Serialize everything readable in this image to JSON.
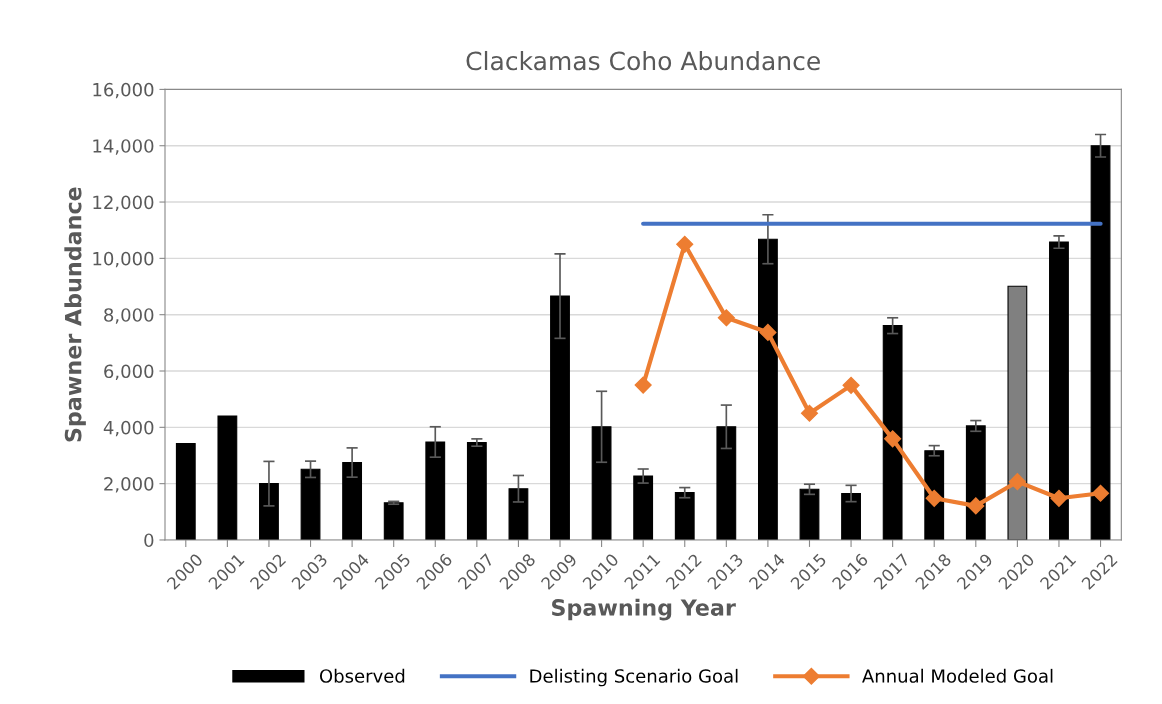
{
  "chart_data": {
    "type": "bar",
    "title": "Clackamas Coho Abundance",
    "xlabel": "Spawning Year",
    "ylabel": "Spawner Abundance",
    "categories": [
      "2000",
      "2001",
      "2002",
      "2003",
      "2004",
      "2005",
      "2006",
      "2007",
      "2008",
      "2009",
      "2010",
      "2011",
      "2012",
      "2013",
      "2014",
      "2015",
      "2016",
      "2017",
      "2018",
      "2019",
      "2020",
      "2021",
      "2022"
    ],
    "series": [
      {
        "name": "Observed",
        "color": "#000000",
        "colors": [
          "#000000",
          "#000000",
          "#000000",
          "#000000",
          "#000000",
          "#000000",
          "#000000",
          "#000000",
          "#000000",
          "#000000",
          "#000000",
          "#000000",
          "#000000",
          "#000000",
          "#000000",
          "#000000",
          "#000000",
          "#000000",
          "#000000",
          "#000000",
          "#808080",
          "#000000",
          "#000000"
        ],
        "values": [
          3420,
          4400,
          2000,
          2510,
          2750,
          1320,
          3480,
          3460,
          1820,
          8660,
          4020,
          2270,
          1680,
          4020,
          10680,
          1800,
          1650,
          7610,
          3170,
          4050,
          9010,
          10580,
          14000
        ],
        "errors": [
          null,
          null,
          790,
          290,
          520,
          50,
          540,
          130,
          470,
          1500,
          1260,
          250,
          180,
          770,
          870,
          180,
          290,
          280,
          180,
          190,
          null,
          220,
          400
        ]
      },
      {
        "name": "Delisting Scenario Goal",
        "type": "line",
        "color": "#4472c4",
        "values": [
          null,
          null,
          null,
          null,
          null,
          null,
          null,
          null,
          null,
          null,
          null,
          11230,
          11230,
          11230,
          11230,
          11230,
          11230,
          11230,
          11230,
          11230,
          11230,
          11230,
          11230
        ]
      },
      {
        "name": "Annual Modeled Goal",
        "type": "line",
        "color": "#ed7d31",
        "marker": "diamond",
        "values": [
          null,
          null,
          null,
          null,
          null,
          null,
          null,
          null,
          null,
          null,
          null,
          5500,
          10500,
          7890,
          7370,
          4500,
          5490,
          3590,
          1480,
          1210,
          2070,
          1480,
          1660
        ]
      }
    ],
    "ylim": [
      0,
      16000
    ],
    "yticks": [
      0,
      {
        "value": 2000,
        "label": "2,000"
      },
      {
        "value": 4000,
        "label": "4,000"
      },
      {
        "value": 6000,
        "label": "6,000"
      },
      {
        "value": 8000,
        "label": "8,000"
      },
      {
        "value": 10000,
        "label": "10,000"
      },
      {
        "value": 12000,
        "label": "12,000"
      },
      {
        "value": 14000,
        "label": "14,000"
      },
      {
        "value": 16000,
        "label": "16,000"
      }
    ],
    "grid": "y",
    "legend": "bottom"
  }
}
